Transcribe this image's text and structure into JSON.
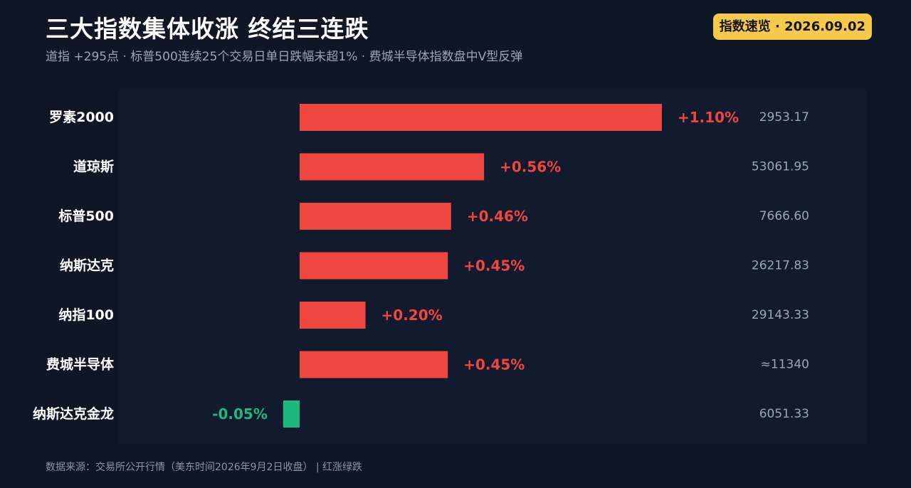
{
  "header": {
    "title": "三大指数集体收涨  终结三连跌",
    "subtitle": "道指 +295点 · 标普500连续25个交易日单日跌幅未超1% · 费城半导体指数盘中V型反弹",
    "badge": "指数速览 · 2026.09.02"
  },
  "footer": {
    "source": "数据来源：交易所公开行情（美东时间2026年9月2日收盘） | 红涨绿跌"
  },
  "colors": {
    "up": "#f04640",
    "down": "#1eb97e",
    "label": "#ffffff",
    "close": "#9ba6b8",
    "badge": "#f5c94a"
  },
  "chart_data": {
    "type": "bar",
    "orientation": "horizontal",
    "categories": [
      "罗素2000",
      "道琼斯",
      "标普500",
      "纳斯达克",
      "纳指100",
      "费城半导体",
      "纳斯达克金龙"
    ],
    "values": [
      1.1,
      0.56,
      0.46,
      0.45,
      0.2,
      0.45,
      -0.05
    ],
    "value_labels": [
      "+1.10%",
      "+0.56%",
      "+0.46%",
      "+0.45%",
      "+0.20%",
      "+0.45%",
      "-0.05%"
    ],
    "close_labels": [
      "2953.17",
      "53061.95",
      "7666.60",
      "26217.83",
      "29143.33",
      "≈11340",
      "6051.33"
    ],
    "unit": "%",
    "grid": false,
    "legend": "none"
  }
}
